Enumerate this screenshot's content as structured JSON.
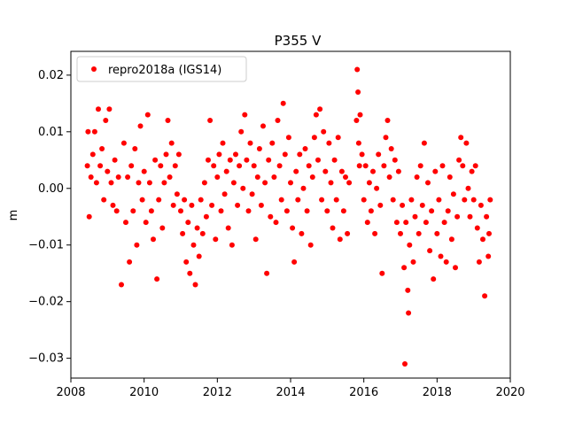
{
  "chart_data": {
    "type": "scatter",
    "title": "P355 V",
    "xlabel": "",
    "ylabel": "m",
    "xlim": [
      2008.0,
      2020.0
    ],
    "ylim": [
      -0.0335,
      0.0242
    ],
    "x_ticks": [
      2008,
      2010,
      2012,
      2014,
      2016,
      2018,
      2020
    ],
    "x_tick_labels": [
      "2008",
      "2010",
      "2012",
      "2014",
      "2016",
      "2018",
      "2020"
    ],
    "y_ticks": [
      -0.03,
      -0.02,
      -0.01,
      0.0,
      0.01,
      0.02
    ],
    "y_tick_labels": [
      "−0.03",
      "−0.02",
      "−0.01",
      "0.00",
      "0.01",
      "0.02"
    ],
    "grid": false,
    "legend_position": "top-left",
    "series": [
      {
        "name": "repro2018a (IGS14)",
        "color": "#ff0000",
        "marker": "circle",
        "points": [
          [
            2008.45,
            0.004
          ],
          [
            2008.47,
            0.01
          ],
          [
            2008.5,
            -0.005
          ],
          [
            2008.55,
            0.002
          ],
          [
            2008.6,
            0.006
          ],
          [
            2008.65,
            0.01
          ],
          [
            2008.7,
            0.001
          ],
          [
            2008.75,
            0.014
          ],
          [
            2008.8,
            0.004
          ],
          [
            2008.85,
            0.007
          ],
          [
            2008.9,
            -0.002
          ],
          [
            2008.95,
            0.012
          ],
          [
            2009.0,
            0.003
          ],
          [
            2009.05,
            0.014
          ],
          [
            2009.1,
            0.001
          ],
          [
            2009.15,
            -0.003
          ],
          [
            2009.2,
            0.005
          ],
          [
            2009.25,
            -0.004
          ],
          [
            2009.3,
            0.002
          ],
          [
            2009.38,
            -0.017
          ],
          [
            2009.45,
            0.008
          ],
          [
            2009.5,
            -0.006
          ],
          [
            2009.55,
            0.002
          ],
          [
            2009.6,
            -0.013
          ],
          [
            2009.65,
            0.004
          ],
          [
            2009.7,
            -0.004
          ],
          [
            2009.75,
            0.007
          ],
          [
            2009.8,
            -0.01
          ],
          [
            2009.85,
            0.001
          ],
          [
            2009.9,
            0.011
          ],
          [
            2009.95,
            -0.002
          ],
          [
            2010.0,
            0.003
          ],
          [
            2010.05,
            -0.006
          ],
          [
            2010.1,
            0.013
          ],
          [
            2010.15,
            0.001
          ],
          [
            2010.2,
            -0.004
          ],
          [
            2010.25,
            -0.009
          ],
          [
            2010.3,
            0.005
          ],
          [
            2010.35,
            -0.016
          ],
          [
            2010.4,
            -0.002
          ],
          [
            2010.45,
            0.004
          ],
          [
            2010.5,
            -0.007
          ],
          [
            2010.55,
            0.001
          ],
          [
            2010.6,
            0.006
          ],
          [
            2010.65,
            0.012
          ],
          [
            2010.7,
            0.002
          ],
          [
            2010.75,
            0.008
          ],
          [
            2010.8,
            -0.003
          ],
          [
            2010.85,
            0.004
          ],
          [
            2010.9,
            -0.001
          ],
          [
            2010.95,
            0.006
          ],
          [
            2011.0,
            -0.004
          ],
          [
            2011.05,
            -0.008
          ],
          [
            2011.1,
            -0.002
          ],
          [
            2011.15,
            -0.013
          ],
          [
            2011.2,
            -0.006
          ],
          [
            2011.25,
            -0.015
          ],
          [
            2011.3,
            -0.003
          ],
          [
            2011.35,
            -0.01
          ],
          [
            2011.4,
            -0.017
          ],
          [
            2011.45,
            -0.007
          ],
          [
            2011.5,
            -0.012
          ],
          [
            2011.55,
            -0.002
          ],
          [
            2011.6,
            -0.008
          ],
          [
            2011.65,
            0.001
          ],
          [
            2011.7,
            -0.005
          ],
          [
            2011.75,
            0.005
          ],
          [
            2011.8,
            0.012
          ],
          [
            2011.85,
            -0.003
          ],
          [
            2011.9,
            0.004
          ],
          [
            2011.95,
            -0.009
          ],
          [
            2012.0,
            0.002
          ],
          [
            2012.05,
            0.006
          ],
          [
            2012.1,
            -0.004
          ],
          [
            2012.15,
            0.008
          ],
          [
            2012.2,
            -0.001
          ],
          [
            2012.25,
            0.003
          ],
          [
            2012.3,
            -0.007
          ],
          [
            2012.35,
            0.005
          ],
          [
            2012.4,
            -0.01
          ],
          [
            2012.45,
            0.001
          ],
          [
            2012.5,
            0.006
          ],
          [
            2012.55,
            -0.003
          ],
          [
            2012.6,
            0.004
          ],
          [
            2012.65,
            0.01
          ],
          [
            2012.7,
            0.0
          ],
          [
            2012.75,
            0.013
          ],
          [
            2012.8,
            0.005
          ],
          [
            2012.85,
            -0.004
          ],
          [
            2012.9,
            0.008
          ],
          [
            2012.95,
            -0.001
          ],
          [
            2013.0,
            0.004
          ],
          [
            2013.05,
            -0.009
          ],
          [
            2013.1,
            0.002
          ],
          [
            2013.15,
            0.007
          ],
          [
            2013.2,
            -0.003
          ],
          [
            2013.25,
            0.011
          ],
          [
            2013.3,
            0.001
          ],
          [
            2013.35,
            -0.015
          ],
          [
            2013.4,
            0.005
          ],
          [
            2013.45,
            -0.005
          ],
          [
            2013.5,
            0.008
          ],
          [
            2013.55,
            0.002
          ],
          [
            2013.6,
            -0.006
          ],
          [
            2013.65,
            0.012
          ],
          [
            2013.7,
            0.004
          ],
          [
            2013.75,
            -0.002
          ],
          [
            2013.8,
            0.015
          ],
          [
            2013.85,
            0.006
          ],
          [
            2013.9,
            -0.004
          ],
          [
            2013.95,
            0.009
          ],
          [
            2014.0,
            0.001
          ],
          [
            2014.05,
            -0.007
          ],
          [
            2014.1,
            -0.013
          ],
          [
            2014.15,
            0.003
          ],
          [
            2014.2,
            -0.002
          ],
          [
            2014.25,
            0.006
          ],
          [
            2014.3,
            -0.008
          ],
          [
            2014.35,
            0.0
          ],
          [
            2014.4,
            0.007
          ],
          [
            2014.45,
            -0.004
          ],
          [
            2014.5,
            0.004
          ],
          [
            2014.55,
            -0.01
          ],
          [
            2014.6,
            0.002
          ],
          [
            2014.65,
            0.009
          ],
          [
            2014.7,
            0.013
          ],
          [
            2014.75,
            0.005
          ],
          [
            2014.8,
            0.014
          ],
          [
            2014.85,
            -0.002
          ],
          [
            2014.9,
            0.01
          ],
          [
            2014.95,
            0.003
          ],
          [
            2015.0,
            -0.004
          ],
          [
            2015.05,
            0.008
          ],
          [
            2015.1,
            0.001
          ],
          [
            2015.15,
            -0.007
          ],
          [
            2015.2,
            0.005
          ],
          [
            2015.25,
            -0.002
          ],
          [
            2015.3,
            0.009
          ],
          [
            2015.35,
            -0.009
          ],
          [
            2015.4,
            0.003
          ],
          [
            2015.45,
            -0.004
          ],
          [
            2015.5,
            0.002
          ],
          [
            2015.55,
            -0.008
          ],
          [
            2015.6,
            0.001
          ],
          [
            2015.8,
            0.012
          ],
          [
            2015.82,
            0.021
          ],
          [
            2015.84,
            0.017
          ],
          [
            2015.86,
            0.008
          ],
          [
            2015.88,
            0.004
          ],
          [
            2015.9,
            0.013
          ],
          [
            2015.95,
            0.006
          ],
          [
            2016.0,
            -0.002
          ],
          [
            2016.05,
            0.004
          ],
          [
            2016.1,
            -0.006
          ],
          [
            2016.15,
            0.001
          ],
          [
            2016.2,
            -0.004
          ],
          [
            2016.25,
            0.003
          ],
          [
            2016.3,
            -0.008
          ],
          [
            2016.35,
            0.0
          ],
          [
            2016.4,
            0.006
          ],
          [
            2016.45,
            -0.003
          ],
          [
            2016.5,
            -0.015
          ],
          [
            2016.55,
            0.004
          ],
          [
            2016.6,
            0.009
          ],
          [
            2016.65,
            0.012
          ],
          [
            2016.7,
            0.002
          ],
          [
            2016.75,
            0.007
          ],
          [
            2016.8,
            -0.002
          ],
          [
            2016.85,
            0.005
          ],
          [
            2016.9,
            -0.006
          ],
          [
            2016.95,
            0.003
          ],
          [
            2017.0,
            -0.008
          ],
          [
            2017.05,
            -0.003
          ],
          [
            2017.1,
            -0.014
          ],
          [
            2017.12,
            -0.031
          ],
          [
            2017.15,
            -0.006
          ],
          [
            2017.2,
            -0.018
          ],
          [
            2017.22,
            -0.022
          ],
          [
            2017.25,
            -0.01
          ],
          [
            2017.3,
            -0.002
          ],
          [
            2017.35,
            -0.013
          ],
          [
            2017.4,
            -0.005
          ],
          [
            2017.45,
            0.002
          ],
          [
            2017.5,
            -0.008
          ],
          [
            2017.55,
            0.004
          ],
          [
            2017.6,
            -0.003
          ],
          [
            2017.65,
            0.008
          ],
          [
            2017.7,
            -0.006
          ],
          [
            2017.75,
            0.001
          ],
          [
            2017.8,
            -0.011
          ],
          [
            2017.85,
            -0.004
          ],
          [
            2017.9,
            -0.016
          ],
          [
            2017.95,
            0.003
          ],
          [
            2018.0,
            -0.008
          ],
          [
            2018.05,
            -0.002
          ],
          [
            2018.1,
            -0.012
          ],
          [
            2018.15,
            0.004
          ],
          [
            2018.2,
            -0.006
          ],
          [
            2018.25,
            -0.013
          ],
          [
            2018.3,
            -0.004
          ],
          [
            2018.35,
            0.002
          ],
          [
            2018.4,
            -0.009
          ],
          [
            2018.45,
            -0.001
          ],
          [
            2018.5,
            -0.014
          ],
          [
            2018.55,
            -0.005
          ],
          [
            2018.6,
            0.005
          ],
          [
            2018.65,
            0.009
          ],
          [
            2018.7,
            0.004
          ],
          [
            2018.75,
            -0.002
          ],
          [
            2018.8,
            0.008
          ],
          [
            2018.85,
            0.0
          ],
          [
            2018.9,
            -0.005
          ],
          [
            2018.95,
            0.003
          ],
          [
            2019.0,
            -0.002
          ],
          [
            2019.05,
            0.004
          ],
          [
            2019.1,
            -0.007
          ],
          [
            2019.15,
            -0.013
          ],
          [
            2019.2,
            -0.003
          ],
          [
            2019.25,
            -0.009
          ],
          [
            2019.3,
            -0.019
          ],
          [
            2019.35,
            -0.005
          ],
          [
            2019.4,
            -0.012
          ],
          [
            2019.42,
            -0.008
          ],
          [
            2019.45,
            -0.002
          ]
        ]
      }
    ]
  }
}
